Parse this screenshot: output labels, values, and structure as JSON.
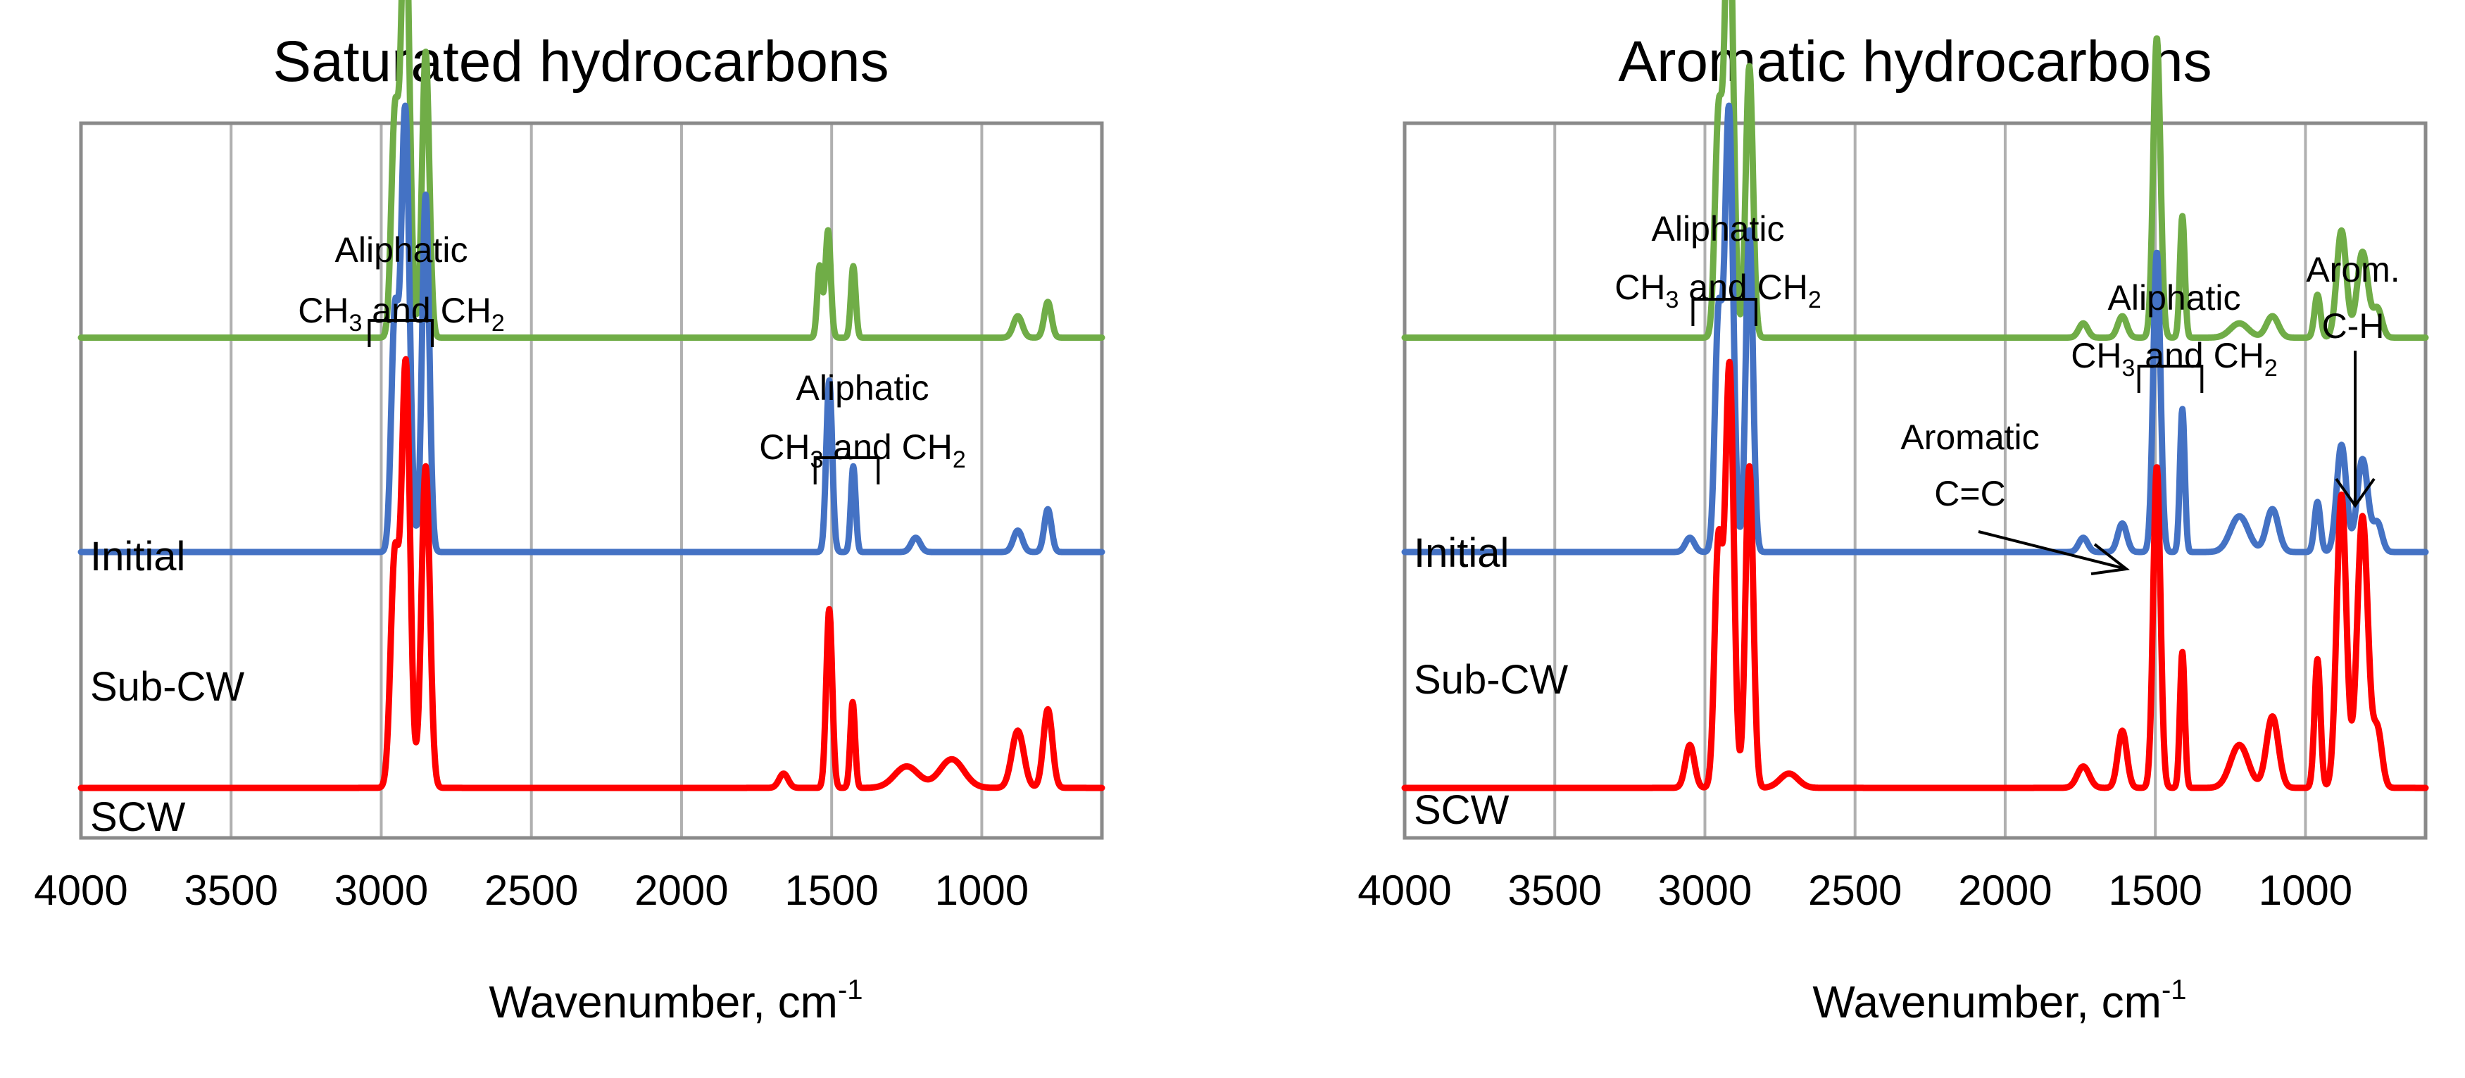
{
  "chart_data": [
    {
      "type": "line",
      "title": "Saturated hydrocarbons",
      "xlabel": "Wavenumber, cm",
      "xlabel_sup": "-1",
      "xlim": [
        4000,
        600
      ],
      "xticks": [
        4000,
        3500,
        3000,
        2500,
        2000,
        1500,
        1000
      ],
      "series": [
        {
          "name": "Initial",
          "color": "#70ad47",
          "baseline": 0.7,
          "peaks": [
            {
              "x": 2955,
              "h": 0.3,
              "w": 12
            },
            {
              "x": 2920,
              "h": 0.62,
              "w": 14
            },
            {
              "x": 2852,
              "h": 0.4,
              "w": 12
            },
            {
              "x": 1512,
              "h": 0.15,
              "w": 9
            },
            {
              "x": 1540,
              "h": 0.1,
              "w": 8
            },
            {
              "x": 1428,
              "h": 0.1,
              "w": 8
            },
            {
              "x": 880,
              "h": 0.03,
              "w": 15
            },
            {
              "x": 780,
              "h": 0.05,
              "w": 12
            }
          ]
        },
        {
          "name": "Sub-CW",
          "color": "#4472c4",
          "baseline": 0.4,
          "peaks": [
            {
              "x": 2955,
              "h": 0.32,
              "w": 12
            },
            {
              "x": 2920,
              "h": 0.62,
              "w": 14
            },
            {
              "x": 2852,
              "h": 0.5,
              "w": 12
            },
            {
              "x": 1508,
              "h": 0.24,
              "w": 10
            },
            {
              "x": 1428,
              "h": 0.12,
              "w": 8
            },
            {
              "x": 1220,
              "h": 0.02,
              "w": 15
            },
            {
              "x": 880,
              "h": 0.03,
              "w": 15
            },
            {
              "x": 780,
              "h": 0.06,
              "w": 12
            }
          ]
        },
        {
          "name": "SCW",
          "color": "#ff0000",
          "baseline": 0.07,
          "peaks": [
            {
              "x": 2955,
              "h": 0.32,
              "w": 14
            },
            {
              "x": 2918,
              "h": 0.59,
              "w": 14
            },
            {
              "x": 2852,
              "h": 0.45,
              "w": 14
            },
            {
              "x": 1660,
              "h": 0.02,
              "w": 15
            },
            {
              "x": 1508,
              "h": 0.25,
              "w": 10
            },
            {
              "x": 1430,
              "h": 0.12,
              "w": 8
            },
            {
              "x": 1250,
              "h": 0.03,
              "w": 40
            },
            {
              "x": 1100,
              "h": 0.04,
              "w": 40
            },
            {
              "x": 880,
              "h": 0.08,
              "w": 20
            },
            {
              "x": 780,
              "h": 0.11,
              "w": 15
            }
          ]
        }
      ],
      "annotations": [
        {
          "line1": "Aliphatic",
          "sub_lead": "CH",
          "sub1": "3",
          "mid": " and CH",
          "sub2": "2",
          "x_from": 3040,
          "x_to": 2830
        },
        {
          "line1": "Aliphatic",
          "sub_lead": "CH",
          "sub1": "3",
          "mid": " and CH",
          "sub2": "2",
          "x_from": 1555,
          "x_to": 1345
        }
      ]
    },
    {
      "type": "line",
      "title": "Aromatic hydrocarbons",
      "xlabel": "Wavenumber, cm",
      "xlabel_sup": "-1",
      "xlim": [
        4000,
        600
      ],
      "xticks": [
        4000,
        3500,
        3000,
        2500,
        2000,
        1500,
        1000
      ],
      "series": [
        {
          "name": "Initial",
          "color": "#70ad47",
          "baseline": 0.7,
          "peaks": [
            {
              "x": 2955,
              "h": 0.3,
              "w": 12
            },
            {
              "x": 2920,
              "h": 0.64,
              "w": 14
            },
            {
              "x": 2852,
              "h": 0.38,
              "w": 12
            },
            {
              "x": 1740,
              "h": 0.02,
              "w": 15
            },
            {
              "x": 1610,
              "h": 0.03,
              "w": 15
            },
            {
              "x": 1495,
              "h": 0.42,
              "w": 12
            },
            {
              "x": 1410,
              "h": 0.17,
              "w": 8
            },
            {
              "x": 1220,
              "h": 0.02,
              "w": 30
            },
            {
              "x": 1110,
              "h": 0.03,
              "w": 20
            },
            {
              "x": 960,
              "h": 0.06,
              "w": 10
            },
            {
              "x": 880,
              "h": 0.15,
              "w": 16
            },
            {
              "x": 810,
              "h": 0.12,
              "w": 18
            },
            {
              "x": 760,
              "h": 0.04,
              "w": 15
            }
          ]
        },
        {
          "name": "Sub-CW",
          "color": "#4472c4",
          "baseline": 0.4,
          "peaks": [
            {
              "x": 3050,
              "h": 0.02,
              "w": 15
            },
            {
              "x": 2955,
              "h": 0.32,
              "w": 12
            },
            {
              "x": 2920,
              "h": 0.62,
              "w": 14
            },
            {
              "x": 2852,
              "h": 0.45,
              "w": 12
            },
            {
              "x": 1740,
              "h": 0.02,
              "w": 15
            },
            {
              "x": 1610,
              "h": 0.04,
              "w": 15
            },
            {
              "x": 1495,
              "h": 0.42,
              "w": 12
            },
            {
              "x": 1410,
              "h": 0.2,
              "w": 8
            },
            {
              "x": 1220,
              "h": 0.05,
              "w": 30
            },
            {
              "x": 1110,
              "h": 0.06,
              "w": 20
            },
            {
              "x": 960,
              "h": 0.07,
              "w": 10
            },
            {
              "x": 880,
              "h": 0.15,
              "w": 16
            },
            {
              "x": 810,
              "h": 0.13,
              "w": 18
            },
            {
              "x": 760,
              "h": 0.04,
              "w": 15
            }
          ]
        },
        {
          "name": "SCW",
          "color": "#ff0000",
          "baseline": 0.07,
          "peaks": [
            {
              "x": 3050,
              "h": 0.06,
              "w": 15
            },
            {
              "x": 2955,
              "h": 0.34,
              "w": 13
            },
            {
              "x": 2918,
              "h": 0.59,
              "w": 14
            },
            {
              "x": 2852,
              "h": 0.45,
              "w": 13
            },
            {
              "x": 2720,
              "h": 0.02,
              "w": 30
            },
            {
              "x": 1740,
              "h": 0.03,
              "w": 20
            },
            {
              "x": 1610,
              "h": 0.08,
              "w": 15
            },
            {
              "x": 1495,
              "h": 0.45,
              "w": 12
            },
            {
              "x": 1410,
              "h": 0.19,
              "w": 8
            },
            {
              "x": 1220,
              "h": 0.06,
              "w": 30
            },
            {
              "x": 1110,
              "h": 0.1,
              "w": 20
            },
            {
              "x": 960,
              "h": 0.18,
              "w": 10
            },
            {
              "x": 880,
              "h": 0.41,
              "w": 16
            },
            {
              "x": 810,
              "h": 0.38,
              "w": 18
            },
            {
              "x": 760,
              "h": 0.08,
              "w": 15
            }
          ]
        }
      ],
      "annotations": [
        {
          "line1": "Aliphatic",
          "sub_lead": "CH",
          "sub1": "3",
          "mid": " and CH",
          "sub2": "2",
          "x_from": 3040,
          "x_to": 2830
        },
        {
          "line1": "Aliphatic",
          "sub_lead": "CH",
          "sub1": "3",
          "mid": " and CH",
          "sub2": "2",
          "x_from": 1555,
          "x_to": 1345
        },
        {
          "line1": "Aromatic",
          "line2": "C=C",
          "arrow_to_x": 1610
        },
        {
          "line1": "Arom.",
          "line2": "C-H",
          "arrow_to_x": 845
        }
      ]
    }
  ]
}
